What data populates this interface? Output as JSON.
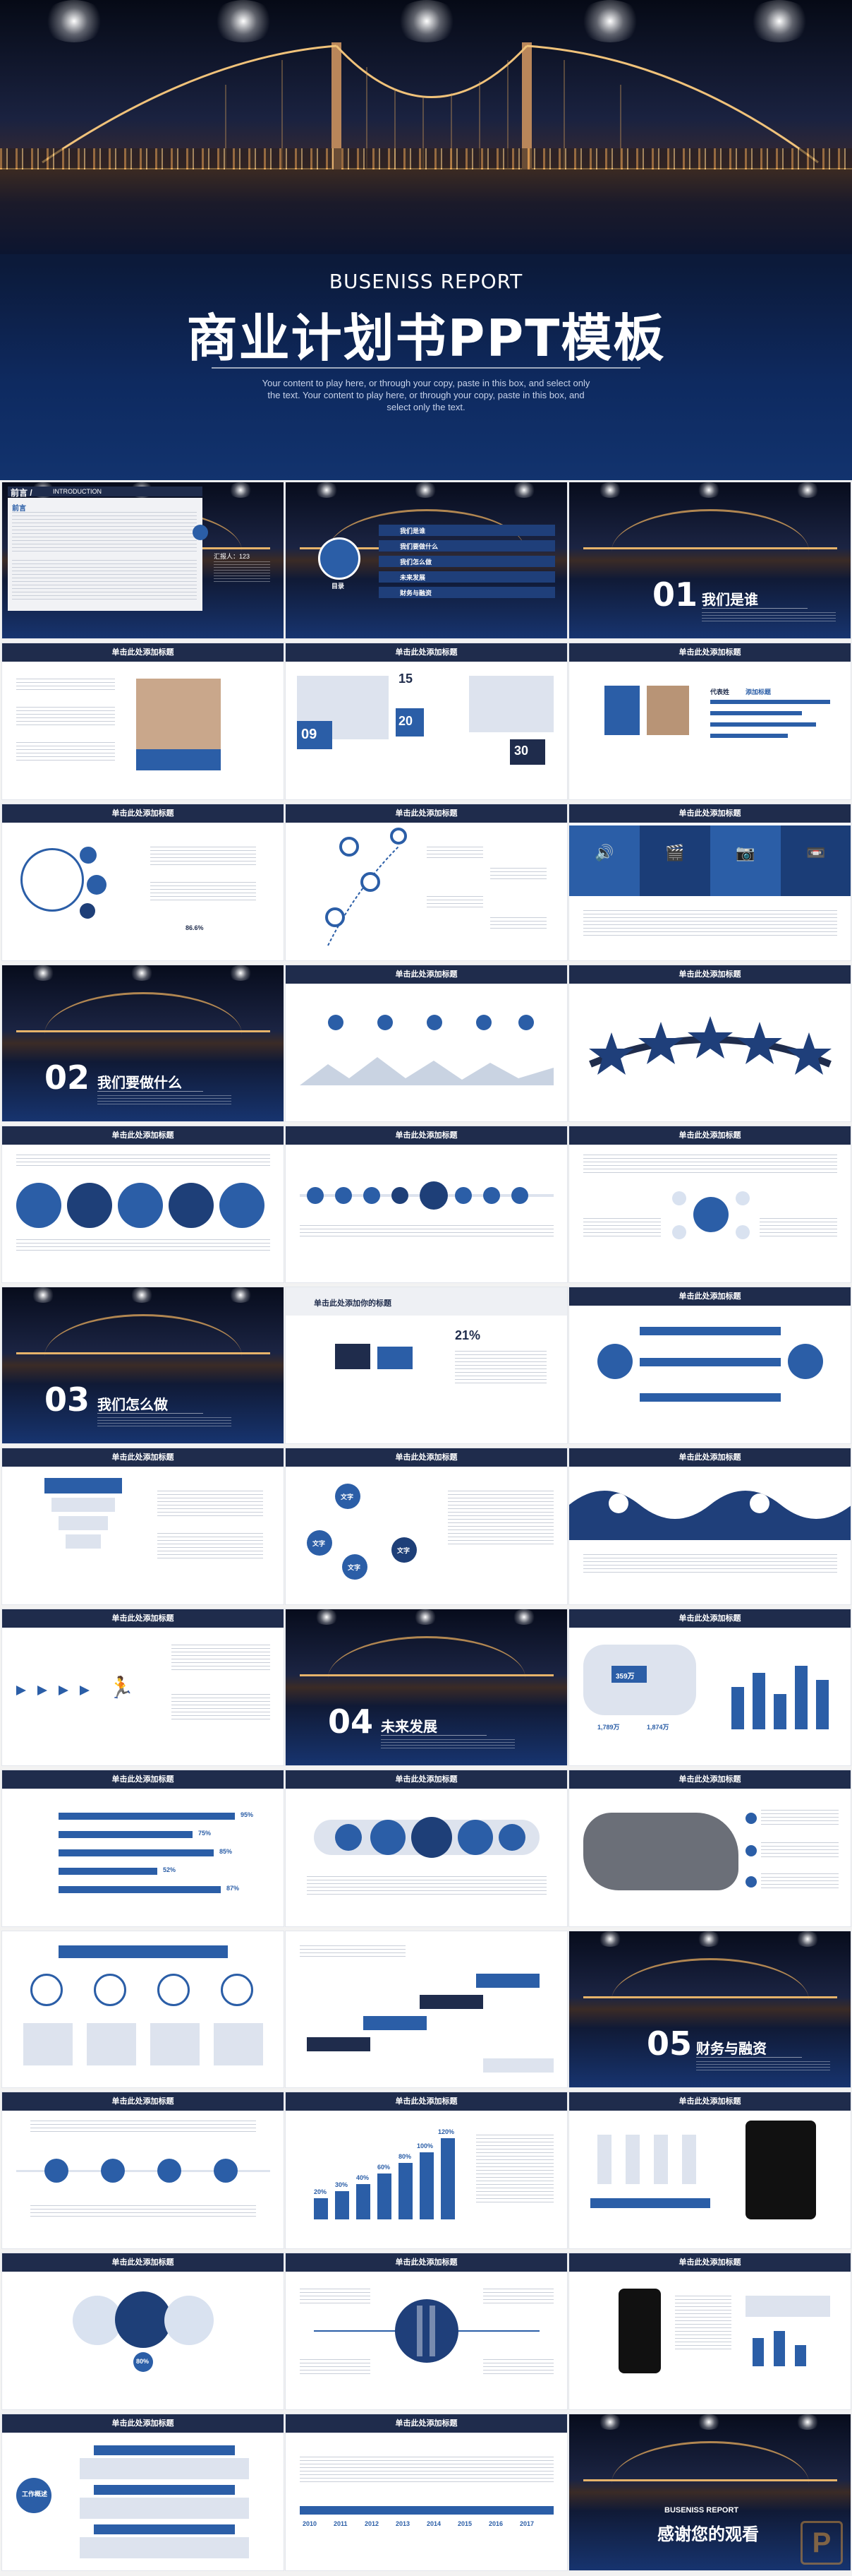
{
  "hero": {
    "subtitle": "BUSENISS REPORT",
    "title": "商业计划书PPT模板",
    "description": "Your content to play here, or through your copy, paste in this box, and select only the text. Your content to play here, or through your copy, paste in this box, and select only the text."
  },
  "intro_slide": {
    "heading": "前言 /",
    "heading_en": "INTRODUCTION",
    "lead": "前言",
    "stat": "汇报人：123"
  },
  "toc_slide": {
    "label": "目录",
    "items": [
      "我们是谁",
      "我们要做什么",
      "我们怎么做",
      "未来发展",
      "财务与融资"
    ]
  },
  "sections": [
    {
      "num": "01",
      "name": "我们是谁"
    },
    {
      "num": "02",
      "name": "我们要做什么"
    },
    {
      "num": "03",
      "name": "我们怎么做"
    },
    {
      "num": "04",
      "name": "未来发展"
    },
    {
      "num": "05",
      "name": "财务与融资"
    }
  ],
  "slide_title": "单击此处添加标题",
  "slide_title_alt": "单击此处添加你的标题",
  "numbers_slide": {
    "n1": "15",
    "n2": "20",
    "n3": "09",
    "n4": "30"
  },
  "profile_slide": {
    "name": "代表姓",
    "role": "添加标题"
  },
  "laptop_percent": "21%",
  "map_value": "359万",
  "map_small": [
    "1,789万",
    "1,874万"
  ],
  "bars_slide": {
    "percents": [
      "95%",
      "75%",
      "85%",
      "52%",
      "87%"
    ]
  },
  "growth_values": [
    "20%",
    "30%",
    "40%",
    "60%",
    "80%",
    "100%",
    "120%"
  ],
  "years": [
    "2010",
    "2011",
    "2012",
    "2013",
    "2014",
    "2015",
    "2016",
    "2017"
  ],
  "percent_86": "86.6%",
  "percent_80": "80%",
  "circle_words": [
    "文字",
    "文字",
    "文字",
    "文字"
  ],
  "work_label": "工作概述",
  "closing": {
    "subtitle": "BUSENISS REPORT",
    "title": "感谢您的观看"
  },
  "watermark": "P",
  "colors": {
    "primary": "#2b5ea7",
    "dark": "#1f2c4c",
    "light": "#dde3ee"
  }
}
